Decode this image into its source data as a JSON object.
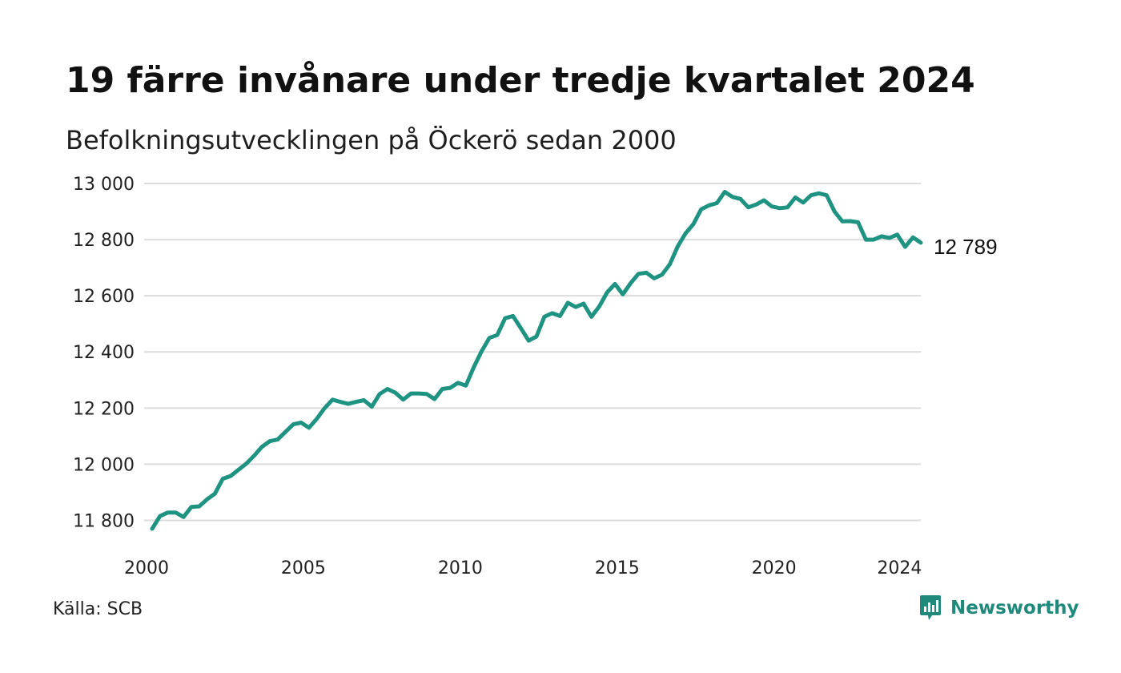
{
  "header": {
    "title": "19 färre invånare under tredje kvartalet 2024",
    "subtitle": "Befolkningsutvecklingen på Öckerö sedan 2000"
  },
  "footer": {
    "source": "Källa: SCB",
    "brand": "Newsworthy"
  },
  "colors": {
    "line": "#1f9381",
    "grid": "#dcdcdc",
    "brand": "#1f8a7b"
  },
  "icons": {
    "brand_logo": "newsworthy-logo-icon"
  },
  "chart_data": {
    "type": "line",
    "title": "19 färre invånare under tredje kvartalet 2024",
    "subtitle": "Befolkningsutvecklingen på Öckerö sedan 2000",
    "xlim": [
      2000,
      2024.5
    ],
    "ylim": [
      11760,
      13000
    ],
    "xticks": [
      2000,
      2005,
      2010,
      2015,
      2020,
      2024
    ],
    "yticks": [
      11800,
      12000,
      12200,
      12400,
      12600,
      12800,
      13000
    ],
    "ytick_labels": [
      "11 800",
      "12 000",
      "12 200",
      "12 400",
      "12 600",
      "12 800",
      "13 000"
    ],
    "grid": true,
    "end_label": "12 789",
    "series": [
      {
        "x_start": 2000.0,
        "x_step": 0.25,
        "values": [
          11770,
          11815,
          11828,
          11828,
          11812,
          11848,
          11850,
          11875,
          11895,
          11948,
          11958,
          11980,
          12002,
          12030,
          12062,
          12082,
          12088,
          12115,
          12142,
          12148,
          12130,
          12162,
          12200,
          12230,
          12222,
          12215,
          12222,
          12228,
          12205,
          12250,
          12268,
          12255,
          12230,
          12252,
          12252,
          12250,
          12232,
          12268,
          12272,
          12290,
          12280,
          12345,
          12402,
          12450,
          12460,
          12520,
          12528,
          12485,
          12440,
          12455,
          12525,
          12538,
          12528,
          12575,
          12560,
          12572,
          12525,
          12562,
          12612,
          12642,
          12605,
          12645,
          12678,
          12682,
          12662,
          12675,
          12712,
          12775,
          12822,
          12855,
          12908,
          12922,
          12930,
          12970,
          12952,
          12945,
          12915,
          12925,
          12940,
          12918,
          12912,
          12915,
          12950,
          12932,
          12958,
          12965,
          12958,
          12900,
          12865,
          12866,
          12862,
          12800,
          12800,
          12812,
          12806,
          12818,
          12774,
          12808,
          12789
        ]
      }
    ]
  }
}
